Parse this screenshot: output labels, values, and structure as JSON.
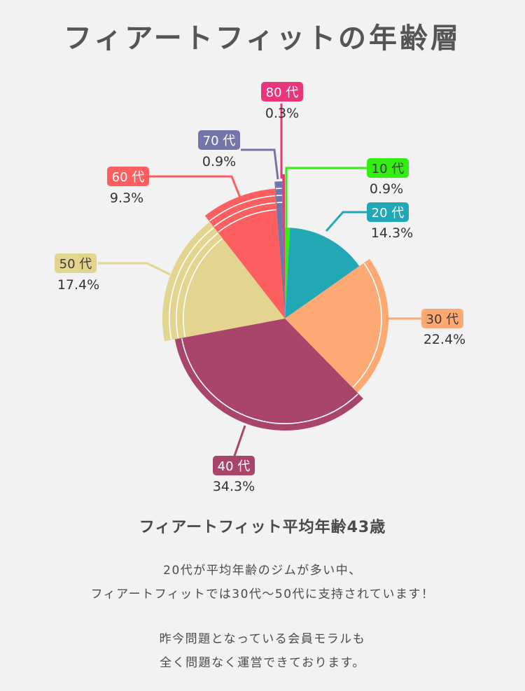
{
  "title": "フィアートフィットの年齢層",
  "subtitle": "フィアートフィット平均年齢43歳",
  "description": {
    "line1": "20代が平均年齢のジムが多い中、",
    "line2": "フィアートフィットでは30代〜50代に支持されています！",
    "line3": "昨今問題となっている会員モラルも",
    "line4": "全く問題なく運営できております。"
  },
  "chart_data": {
    "type": "pie",
    "categories": [
      "10 代",
      "20 代",
      "30 代",
      "40 代",
      "50 代",
      "60 代",
      "70 代",
      "80 代"
    ],
    "values": [
      0.9,
      14.3,
      22.4,
      34.3,
      17.4,
      9.3,
      0.9,
      0.3
    ],
    "value_labels": [
      "0.9%",
      "14.3%",
      "22.4%",
      "34.3%",
      "17.4%",
      "9.3%",
      "0.9%",
      "0.3%"
    ],
    "colors": [
      "#33ee11",
      "#22a7b5",
      "#fca974",
      "#a9456a",
      "#e3d58f",
      "#fd5e60",
      "#7474a8",
      "#e8357b"
    ],
    "legend": "none"
  }
}
